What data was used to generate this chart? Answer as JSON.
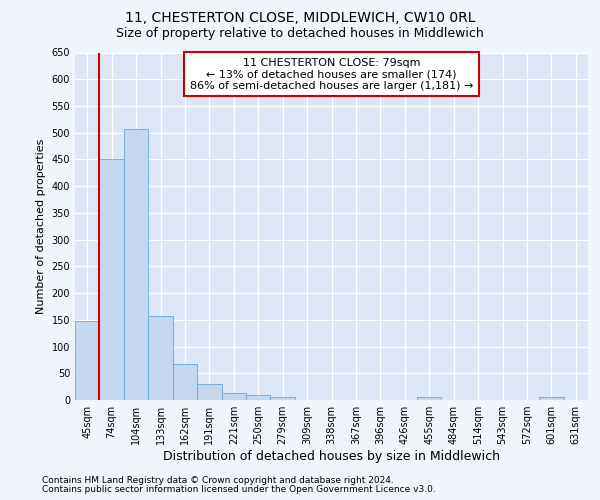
{
  "title1": "11, CHESTERTON CLOSE, MIDDLEWICH, CW10 0RL",
  "title2": "Size of property relative to detached houses in Middlewich",
  "xlabel": "Distribution of detached houses by size in Middlewich",
  "ylabel": "Number of detached properties",
  "categories": [
    "45sqm",
    "74sqm",
    "104sqm",
    "133sqm",
    "162sqm",
    "191sqm",
    "221sqm",
    "250sqm",
    "279sqm",
    "309sqm",
    "338sqm",
    "367sqm",
    "396sqm",
    "426sqm",
    "455sqm",
    "484sqm",
    "514sqm",
    "543sqm",
    "572sqm",
    "601sqm",
    "631sqm"
  ],
  "values": [
    148,
    450,
    507,
    158,
    67,
    30,
    14,
    9,
    5,
    0,
    0,
    0,
    0,
    0,
    6,
    0,
    0,
    0,
    0,
    6,
    0
  ],
  "bar_color": "#c5d8f0",
  "bar_edge_color": "#6aaad4",
  "vline_color": "#cc0000",
  "vline_index": 1,
  "annotation_text": "11 CHESTERTON CLOSE: 79sqm\n← 13% of detached houses are smaller (174)\n86% of semi-detached houses are larger (1,181) →",
  "annotation_box_facecolor": "#ffffff",
  "annotation_box_edgecolor": "#cc0000",
  "ylim": [
    0,
    650
  ],
  "yticks": [
    0,
    50,
    100,
    150,
    200,
    250,
    300,
    350,
    400,
    450,
    500,
    550,
    600,
    650
  ],
  "footer1": "Contains HM Land Registry data © Crown copyright and database right 2024.",
  "footer2": "Contains public sector information licensed under the Open Government Licence v3.0.",
  "bg_color": "#f0f4fb",
  "plot_bg_color": "#dce6f5",
  "title1_fontsize": 10,
  "title2_fontsize": 9,
  "xlabel_fontsize": 9,
  "ylabel_fontsize": 8,
  "tick_fontsize": 7,
  "annot_fontsize": 8,
  "footer_fontsize": 6.5
}
